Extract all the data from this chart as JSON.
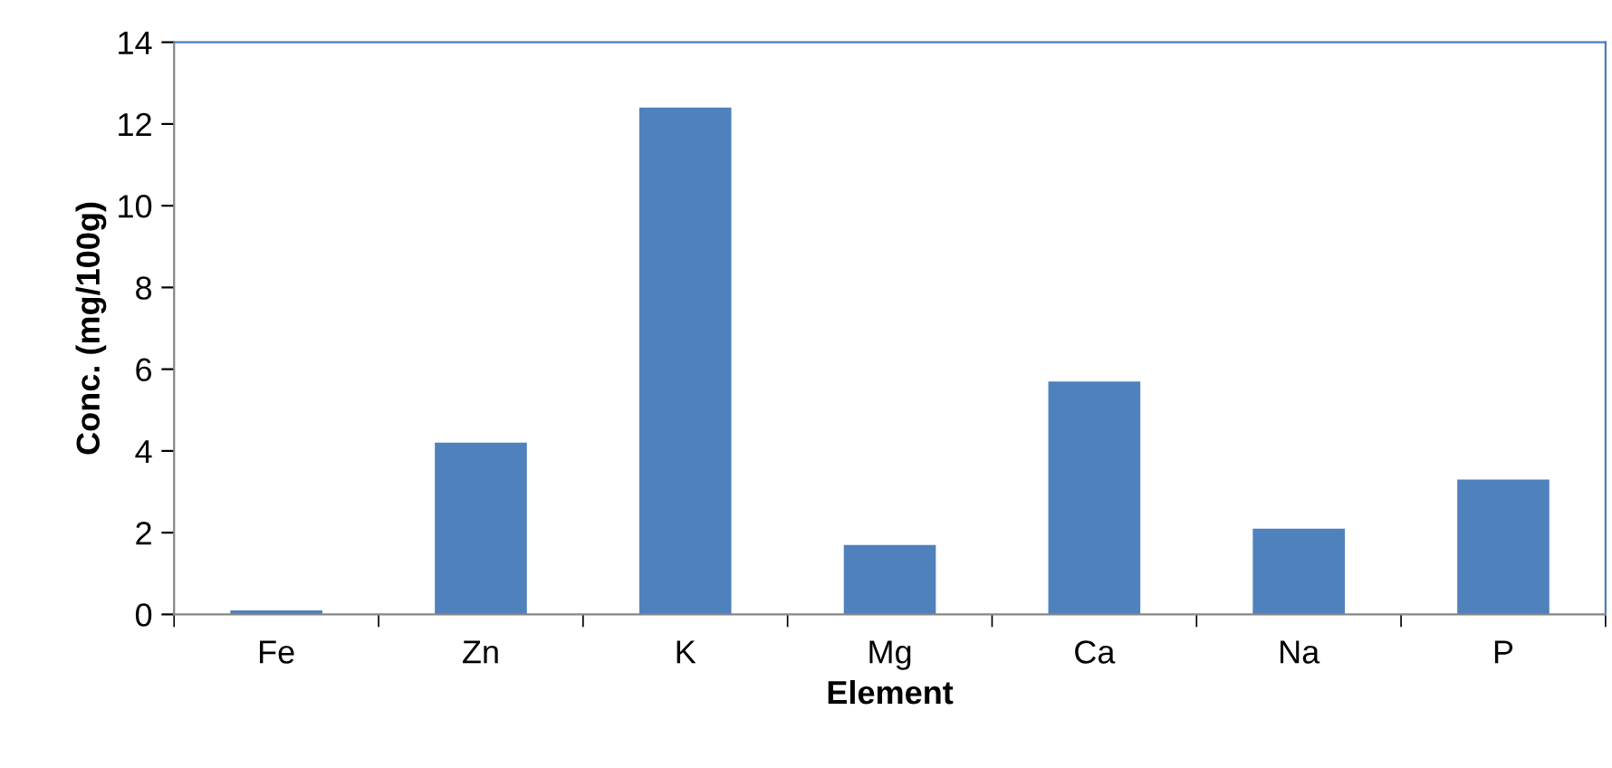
{
  "chart_data": {
    "type": "bar",
    "xlabel": "Element",
    "ylabel": "Conc. (mg/100g)",
    "categories": [
      "Fe",
      "Zn",
      "K",
      "Mg",
      "Ca",
      "Na",
      "P"
    ],
    "values": [
      0.1,
      4.2,
      12.4,
      1.7,
      5.7,
      2.1,
      3.3
    ],
    "color": "#4f81bd",
    "ylim": [
      0,
      14
    ],
    "yticks": [
      0,
      2,
      4,
      6,
      8,
      10,
      12,
      14
    ],
    "grid": false,
    "legend": false
  }
}
